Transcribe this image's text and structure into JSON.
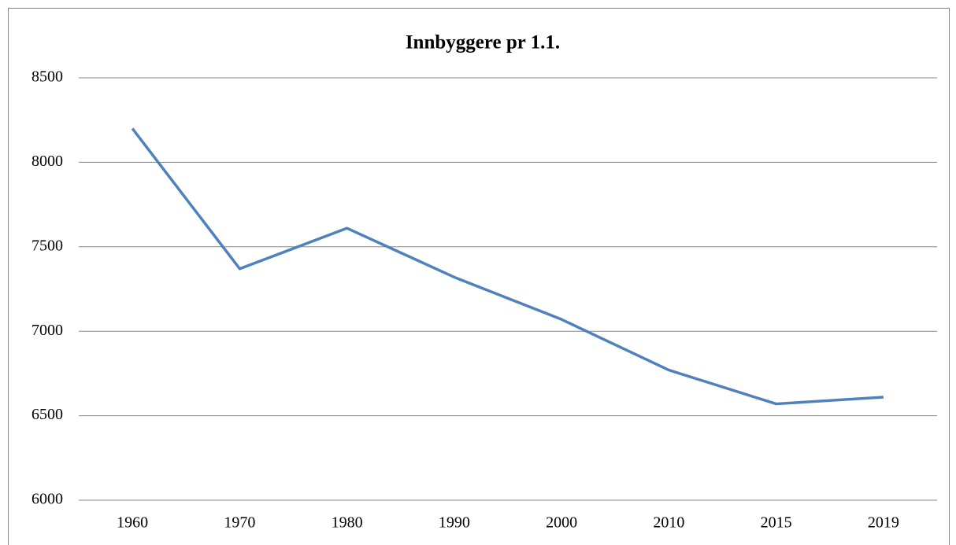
{
  "chart_data": {
    "type": "line",
    "title": "Innbyggere pr 1.1.",
    "categories": [
      "1960",
      "1970",
      "1980",
      "1990",
      "2000",
      "2010",
      "2015",
      "2019"
    ],
    "series": [
      {
        "name": "Innbyggere",
        "color": "#4f81bd",
        "values": [
          8200,
          7370,
          7610,
          7320,
          7070,
          6770,
          6570,
          6610
        ]
      }
    ],
    "ylim": [
      6000,
      8500
    ],
    "yticks": [
      6000,
      6500,
      7000,
      7500,
      8000,
      8500
    ],
    "grid": true
  }
}
